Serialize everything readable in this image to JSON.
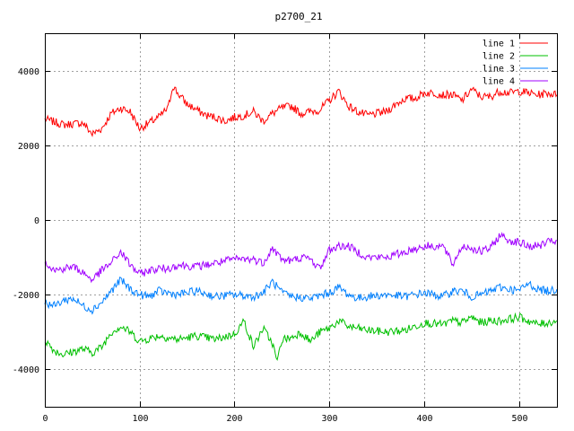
{
  "chart_data": {
    "type": "line",
    "title": "p2700_21",
    "xlabel": "",
    "ylabel": "",
    "xlim": [
      0,
      540
    ],
    "ylim": [
      -5000,
      5000
    ],
    "x_ticks": [
      0,
      100,
      200,
      300,
      400,
      500
    ],
    "y_ticks": [
      -4000,
      -2000,
      0,
      2000,
      4000
    ],
    "grid": true,
    "legend_position": "top-right",
    "series": [
      {
        "name": "line 1",
        "color": "#ff0000",
        "x": [
          0,
          20,
          40,
          50,
          60,
          70,
          80,
          90,
          100,
          110,
          120,
          130,
          135,
          140,
          150,
          160,
          170,
          180,
          190,
          200,
          210,
          220,
          230,
          240,
          250,
          260,
          270,
          280,
          290,
          300,
          310,
          320,
          330,
          340,
          350,
          360,
          370,
          380,
          390,
          400,
          410,
          420,
          430,
          440,
          450,
          460,
          470,
          480,
          490,
          500,
          510,
          520,
          530,
          540
        ],
        "values": [
          2700,
          2550,
          2600,
          2300,
          2450,
          2850,
          3000,
          2900,
          2450,
          2600,
          2750,
          3000,
          3600,
          3400,
          3100,
          2950,
          2800,
          2750,
          2650,
          2750,
          2800,
          2900,
          2650,
          2850,
          3000,
          3050,
          2850,
          2900,
          2950,
          3200,
          3450,
          3050,
          2900,
          2800,
          2850,
          2900,
          3100,
          3250,
          3250,
          3400,
          3400,
          3350,
          3350,
          3200,
          3500,
          3300,
          3300,
          3450,
          3400,
          3450,
          3400,
          3350,
          3400,
          3350
        ]
      },
      {
        "name": "line 2",
        "color": "#00c000",
        "x": [
          0,
          10,
          20,
          40,
          50,
          60,
          70,
          80,
          90,
          100,
          120,
          140,
          160,
          180,
          200,
          210,
          220,
          230,
          240,
          245,
          250,
          260,
          270,
          280,
          290,
          300,
          310,
          320,
          340,
          360,
          380,
          400,
          420,
          430,
          440,
          450,
          460,
          470,
          480,
          490,
          500,
          510,
          520,
          530,
          540
        ],
        "values": [
          -3200,
          -3500,
          -3600,
          -3450,
          -3550,
          -3400,
          -3000,
          -2850,
          -3000,
          -3250,
          -3100,
          -3200,
          -3100,
          -3200,
          -3050,
          -2700,
          -3400,
          -2900,
          -3300,
          -3800,
          -3200,
          -3150,
          -3000,
          -3250,
          -3000,
          -2900,
          -2700,
          -2850,
          -2950,
          -3000,
          -2950,
          -2750,
          -2800,
          -2700,
          -2750,
          -2600,
          -2750,
          -2700,
          -2700,
          -2650,
          -2600,
          -2700,
          -2800,
          -2750,
          -2700
        ]
      },
      {
        "name": "line 3",
        "color": "#0080ff",
        "x": [
          0,
          10,
          20,
          30,
          40,
          50,
          60,
          70,
          80,
          90,
          100,
          110,
          120,
          140,
          160,
          180,
          200,
          220,
          230,
          240,
          250,
          260,
          280,
          300,
          310,
          320,
          330,
          340,
          360,
          380,
          400,
          420,
          430,
          440,
          450,
          460,
          480,
          500,
          510,
          520,
          530,
          540
        ],
        "values": [
          -2200,
          -2300,
          -2150,
          -2100,
          -2300,
          -2400,
          -2200,
          -1900,
          -1600,
          -1850,
          -2000,
          -2050,
          -1900,
          -2000,
          -1900,
          -2050,
          -2000,
          -2050,
          -1950,
          -1650,
          -1950,
          -2050,
          -2100,
          -1950,
          -1800,
          -2000,
          -2100,
          -2050,
          -2000,
          -2050,
          -1950,
          -2050,
          -1900,
          -1900,
          -2050,
          -2000,
          -1800,
          -1900,
          -1700,
          -1850,
          -1900,
          -1850
        ]
      },
      {
        "name": "line 4",
        "color": "#a000ff",
        "x": [
          0,
          10,
          20,
          30,
          40,
          50,
          60,
          70,
          80,
          90,
          100,
          110,
          120,
          130,
          140,
          160,
          180,
          200,
          220,
          230,
          240,
          250,
          260,
          270,
          280,
          290,
          300,
          310,
          320,
          340,
          360,
          380,
          400,
          420,
          430,
          440,
          450,
          460,
          470,
          480,
          490,
          500,
          510,
          520,
          530,
          540
        ],
        "values": [
          -1100,
          -1350,
          -1300,
          -1250,
          -1400,
          -1600,
          -1350,
          -1150,
          -850,
          -1200,
          -1450,
          -1350,
          -1300,
          -1300,
          -1200,
          -1250,
          -1150,
          -1050,
          -1050,
          -1150,
          -750,
          -1050,
          -1100,
          -1000,
          -1050,
          -1300,
          -800,
          -700,
          -700,
          -1000,
          -1000,
          -850,
          -700,
          -700,
          -1200,
          -700,
          -750,
          -850,
          -750,
          -400,
          -550,
          -600,
          -700,
          -700,
          -600,
          -550
        ]
      }
    ]
  }
}
